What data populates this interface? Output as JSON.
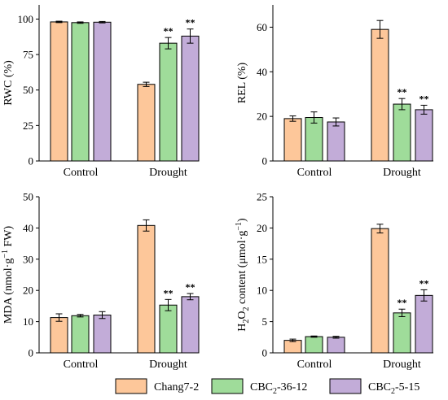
{
  "colors": {
    "Chang7-2": "#fdc79a",
    "CBC2-36-12": "#9fdc9a",
    "CBC2-5-15": "#c2acd8",
    "stroke": "#000000"
  },
  "legend": [
    {
      "name": "Chang7-2",
      "text": "Chang7-2",
      "sub": "",
      "rest": ""
    },
    {
      "name": "CBC2-36-12",
      "text": "CBC",
      "sub": "2",
      "rest": "-36-12"
    },
    {
      "name": "CBC2-5-15",
      "text": "CBC",
      "sub": "2",
      "rest": "-5-15"
    }
  ],
  "chart_data": [
    {
      "type": "bar",
      "ylabel": "RWC (%)",
      "ylim": [
        0,
        110
      ],
      "yticks": [
        0,
        25,
        50,
        75,
        100
      ],
      "categories": [
        "Control",
        "Drought"
      ],
      "series": [
        {
          "name": "Chang7-2",
          "values": [
            98,
            54
          ],
          "errors": [
            0.5,
            1.5
          ],
          "sig": [
            "",
            ""
          ]
        },
        {
          "name": "CBC2-36-12",
          "values": [
            97.5,
            83
          ],
          "errors": [
            0.5,
            4
          ],
          "sig": [
            "",
            "**"
          ]
        },
        {
          "name": "CBC2-5-15",
          "values": [
            97.8,
            88
          ],
          "errors": [
            0.5,
            5
          ],
          "sig": [
            "",
            "**"
          ]
        }
      ]
    },
    {
      "type": "bar",
      "ylabel": "REL (%)",
      "ylim": [
        0,
        70
      ],
      "yticks": [
        0,
        20,
        40,
        60
      ],
      "categories": [
        "Control",
        "Drought"
      ],
      "series": [
        {
          "name": "Chang7-2",
          "values": [
            19,
            59
          ],
          "errors": [
            1.2,
            4
          ],
          "sig": [
            "",
            ""
          ]
        },
        {
          "name": "CBC2-36-12",
          "values": [
            19.5,
            25.5
          ],
          "errors": [
            2.5,
            2.5
          ],
          "sig": [
            "",
            "**"
          ]
        },
        {
          "name": "CBC2-5-15",
          "values": [
            17.5,
            23
          ],
          "errors": [
            1.8,
            2
          ],
          "sig": [
            "",
            "**"
          ]
        }
      ]
    },
    {
      "type": "bar",
      "ylabel": "MDA (nmol·g⁻¹ FW)",
      "ylabel_parts": [
        "MDA (nmol·g",
        "−1",
        " FW)"
      ],
      "ylim": [
        0,
        50
      ],
      "yticks": [
        0,
        10,
        20,
        30,
        40,
        50
      ],
      "categories": [
        "Control",
        "Drought"
      ],
      "series": [
        {
          "name": "Chang7-2",
          "values": [
            11.3,
            40.8
          ],
          "errors": [
            1.2,
            1.8
          ],
          "sig": [
            "",
            ""
          ]
        },
        {
          "name": "CBC2-36-12",
          "values": [
            11.9,
            15.3
          ],
          "errors": [
            0.4,
            1.8
          ],
          "sig": [
            "",
            "**"
          ]
        },
        {
          "name": "CBC2-5-15",
          "values": [
            12.1,
            18
          ],
          "errors": [
            1.1,
            1
          ],
          "sig": [
            "",
            "**"
          ]
        }
      ]
    },
    {
      "type": "bar",
      "ylabel": "H₂O₂ content (μmol·g⁻¹)",
      "ylabel_parts": [
        "H",
        "2",
        "O",
        "2",
        " content (μmol·g",
        "−1",
        ")"
      ],
      "ylim": [
        0,
        25
      ],
      "yticks": [
        0,
        5,
        10,
        15,
        20,
        25
      ],
      "categories": [
        "Control",
        "Drought"
      ],
      "series": [
        {
          "name": "Chang7-2",
          "values": [
            2,
            19.9
          ],
          "errors": [
            0.2,
            0.7
          ],
          "sig": [
            "",
            ""
          ]
        },
        {
          "name": "CBC2-36-12",
          "values": [
            2.6,
            6.4
          ],
          "errors": [
            0.1,
            0.6
          ],
          "sig": [
            "",
            "**"
          ]
        },
        {
          "name": "CBC2-5-15",
          "values": [
            2.5,
            9.2
          ],
          "errors": [
            0.15,
            0.9
          ],
          "sig": [
            "",
            "**"
          ]
        }
      ]
    }
  ]
}
